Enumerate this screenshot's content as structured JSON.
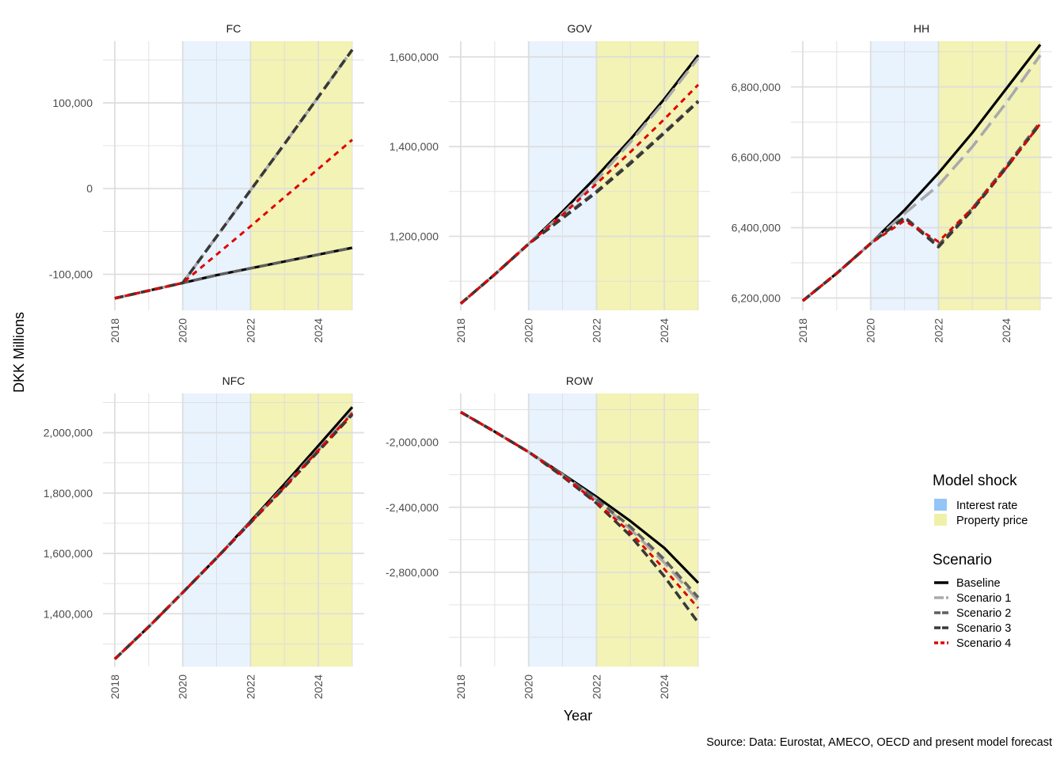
{
  "chart_data": {
    "type": "line",
    "title": "",
    "xlabel": "Year",
    "ylabel": "DKK Millions",
    "caption": "Source: Data: Eurostat, AMECO, OECD and present model forecast",
    "x": [
      2018,
      2019,
      2020,
      2021,
      2022,
      2023,
      2024,
      2025
    ],
    "x_ticks": [
      "2018",
      "2020",
      "2022",
      "2024"
    ],
    "shocks": [
      {
        "name": "Interest rate",
        "color": "#8DC2F5",
        "start": 2020,
        "end": 2022
      },
      {
        "name": "Property price",
        "color": "#F0F1A8",
        "start": 2022,
        "end": 2025
      }
    ],
    "legend": {
      "shock_title": "Model shock",
      "scenario_title": "Scenario"
    },
    "scenarios": [
      {
        "name": "Baseline",
        "color": "#000000",
        "dash": "solid"
      },
      {
        "name": "Scenario 1",
        "color": "#A9A9AE",
        "dash": "longdash"
      },
      {
        "name": "Scenario 2",
        "color": "#5F5F5F",
        "dash": "dash"
      },
      {
        "name": "Scenario 3",
        "color": "#383838",
        "dash": "dash"
      },
      {
        "name": "Scenario 4",
        "color": "#E00000",
        "dash": "dot"
      }
    ],
    "panels": [
      {
        "name": "FC",
        "ylim": [
          -142000,
          172000
        ],
        "y_ticks": [
          -100000,
          0,
          100000
        ],
        "y_tick_labels": [
          "-100,000",
          "0",
          "100,000"
        ],
        "series": [
          {
            "name": "Baseline",
            "values": [
              -128000,
              -119000,
              -110000,
              -101000,
              -93000,
              -85000,
              -77000,
              -69000
            ]
          },
          {
            "name": "Scenario 1",
            "values": [
              -128000,
              -119000,
              -110000,
              -56000,
              -2000,
              52000,
              107000,
              162000
            ]
          },
          {
            "name": "Scenario 2",
            "values": [
              -128000,
              -119000,
              -110000,
              -101000,
              -93000,
              -85000,
              -77000,
              -69000
            ]
          },
          {
            "name": "Scenario 3",
            "values": [
              -128000,
              -119000,
              -110000,
              -56000,
              -2000,
              52000,
              107000,
              162000
            ]
          },
          {
            "name": "Scenario 4",
            "values": [
              -128000,
              -119000,
              -110000,
              -77000,
              -44000,
              -10000,
              23000,
              57000
            ]
          }
        ]
      },
      {
        "name": "GOV",
        "ylim": [
          1035000,
          1635000
        ],
        "y_ticks": [
          1200000,
          1400000,
          1600000
        ],
        "y_tick_labels": [
          "1,200,000",
          "1,400,000",
          "1,600,000"
        ],
        "series": [
          {
            "name": "Baseline",
            "values": [
              1050000,
              1115000,
              1183000,
              1255000,
              1333000,
              1416000,
              1506000,
              1604000
            ]
          },
          {
            "name": "Scenario 1",
            "values": [
              1050000,
              1115000,
              1183000,
              1250000,
              1325000,
              1410000,
              1500000,
              1597000
            ]
          },
          {
            "name": "Scenario 2",
            "values": [
              1050000,
              1115000,
              1183000,
              1242000,
              1300000,
              1365000,
              1432000,
              1502000
            ]
          },
          {
            "name": "Scenario 3",
            "values": [
              1050000,
              1115000,
              1183000,
              1240000,
              1298000,
              1362000,
              1430000,
              1500000
            ]
          },
          {
            "name": "Scenario 4",
            "values": [
              1050000,
              1115000,
              1183000,
              1248000,
              1317000,
              1388000,
              1461000,
              1538000
            ]
          }
        ]
      },
      {
        "name": "HH",
        "ylim": [
          6165000,
          6930000
        ],
        "y_ticks": [
          6200000,
          6400000,
          6600000,
          6800000
        ],
        "y_tick_labels": [
          "6,200,000",
          "6,400,000",
          "6,600,000",
          "6,800,000"
        ],
        "series": [
          {
            "name": "Baseline",
            "values": [
              6192000,
              6270000,
              6355000,
              6450000,
              6555000,
              6670000,
              6795000,
              6920000
            ]
          },
          {
            "name": "Scenario 1",
            "values": [
              6192000,
              6270000,
              6355000,
              6440000,
              6520000,
              6630000,
              6755000,
              6890000
            ]
          },
          {
            "name": "Scenario 2",
            "values": [
              6192000,
              6270000,
              6355000,
              6430000,
              6350000,
              6455000,
              6575000,
              6700000
            ]
          },
          {
            "name": "Scenario 3",
            "values": [
              6192000,
              6270000,
              6355000,
              6428000,
              6345000,
              6450000,
              6570000,
              6695000
            ]
          },
          {
            "name": "Scenario 4",
            "values": [
              6192000,
              6270000,
              6355000,
              6420000,
              6360000,
              6455000,
              6570000,
              6695000
            ]
          }
        ]
      },
      {
        "name": "NFC",
        "ylim": [
          1225000,
          2130000
        ],
        "y_ticks": [
          1400000,
          1600000,
          1800000,
          2000000
        ],
        "y_tick_labels": [
          "1,400,000",
          "1,600,000",
          "1,800,000",
          "2,000,000"
        ],
        "series": [
          {
            "name": "Baseline",
            "values": [
              1250000,
              1357000,
              1470000,
              1585000,
              1706000,
              1830000,
              1957000,
              2085000
            ]
          },
          {
            "name": "Scenario 1",
            "values": [
              1250000,
              1357000,
              1470000,
              1585000,
              1703000,
              1822000,
              1944000,
              2068000
            ]
          },
          {
            "name": "Scenario 2",
            "values": [
              1250000,
              1357000,
              1470000,
              1585000,
              1702000,
              1820000,
              1941000,
              2064000
            ]
          },
          {
            "name": "Scenario 3",
            "values": [
              1250000,
              1357000,
              1470000,
              1585000,
              1702000,
              1818000,
              1938000,
              2060000
            ]
          },
          {
            "name": "Scenario 4",
            "values": [
              1250000,
              1357000,
              1470000,
              1585000,
              1702000,
              1820000,
              1941000,
              2064000
            ]
          }
        ]
      },
      {
        "name": "ROW",
        "ylim": [
          -3380000,
          -1700000
        ],
        "y_ticks": [
          -2800000,
          -2400000,
          -2000000
        ],
        "y_tick_labels": [
          "-2,800,000",
          "-2,400,000",
          "-2,000,000"
        ],
        "series": [
          {
            "name": "Baseline",
            "values": [
              -1815000,
              -1935000,
              -2060000,
              -2195000,
              -2335000,
              -2485000,
              -2650000,
              -2865000
            ]
          },
          {
            "name": "Scenario 1",
            "values": [
              -1815000,
              -1935000,
              -2060000,
              -2200000,
              -2350000,
              -2535000,
              -2740000,
              -2975000
            ]
          },
          {
            "name": "Scenario 2",
            "values": [
              -1815000,
              -1935000,
              -2060000,
              -2200000,
              -2350000,
              -2520000,
              -2720000,
              -2955000
            ]
          },
          {
            "name": "Scenario 3",
            "values": [
              -1815000,
              -1935000,
              -2060000,
              -2210000,
              -2375000,
              -2575000,
              -2825000,
              -3110000
            ]
          },
          {
            "name": "Scenario 4",
            "values": [
              -1815000,
              -1935000,
              -2060000,
              -2205000,
              -2370000,
              -2555000,
              -2780000,
              -3020000
            ]
          }
        ]
      }
    ]
  }
}
